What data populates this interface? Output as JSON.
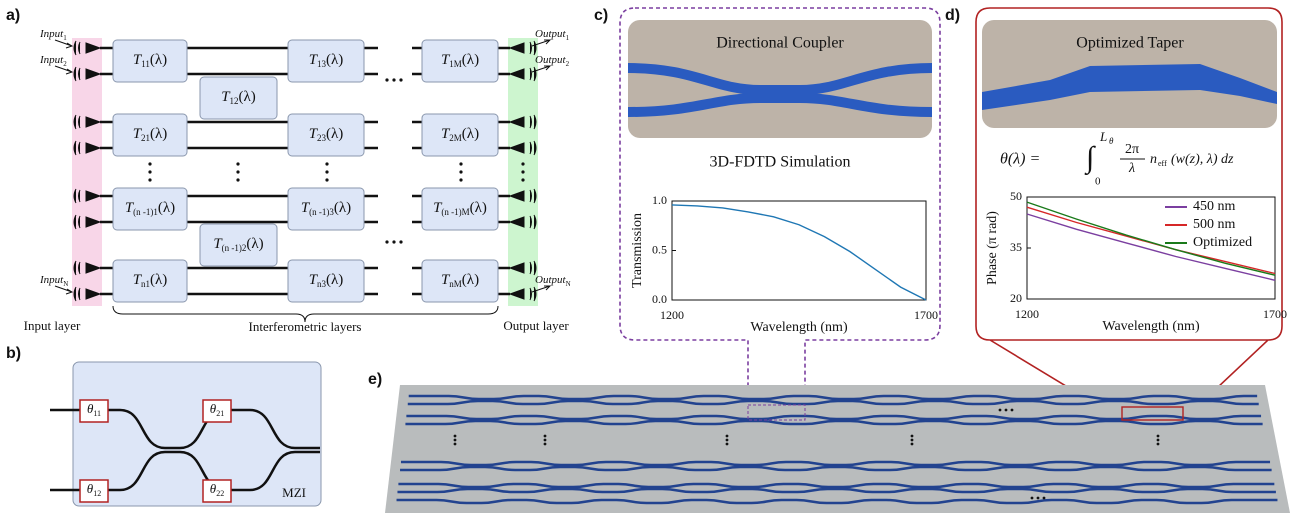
{
  "panel_a": {
    "label": "a)",
    "inputs": [
      {
        "text": "Input",
        "sub": "1"
      },
      {
        "text": "Input",
        "sub": "2"
      },
      {
        "text": "Input",
        "sub": "N"
      }
    ],
    "outputs": [
      {
        "text": "Output",
        "sub": "1"
      },
      {
        "text": "Output",
        "sub": "2"
      },
      {
        "text": "Output",
        "sub": "N"
      }
    ],
    "block_symbol": "T",
    "block_argument": "(λ)",
    "blocks": [
      "11",
      "12",
      "13",
      "1M",
      "21",
      "23",
      "2M",
      "(n -1)1",
      "(n -1)2",
      "(n -1)3",
      "(n -1)M",
      "n1",
      "n3",
      "nM"
    ],
    "layer_labels": [
      "Input layer",
      "Interferometric layers",
      "Output layer"
    ]
  },
  "panel_b": {
    "label": "b)",
    "phase_symbol": "θ",
    "phase_subs": [
      "11",
      "21",
      "12",
      "22"
    ],
    "box_label": "MZI"
  },
  "panel_c": {
    "label": "c)",
    "image_caption": "Directional Coupler",
    "subtitle": "3D-FDTD Simulation",
    "chart": {
      "type": "line",
      "x": [
        1200,
        1250,
        1300,
        1350,
        1400,
        1450,
        1500,
        1550,
        1600,
        1650,
        1700
      ],
      "values": [
        0.96,
        0.95,
        0.93,
        0.89,
        0.84,
        0.76,
        0.64,
        0.49,
        0.31,
        0.13,
        0.0
      ],
      "color": "#1f77b4",
      "xlim": [
        1200,
        1700
      ],
      "ylim": [
        0,
        1
      ],
      "xticks": [
        1200,
        1700
      ],
      "yticks": [
        {
          "value": 0,
          "label": "0.0"
        },
        {
          "value": 0.5,
          "label": "0.5"
        },
        {
          "value": 1,
          "label": "1.0"
        }
      ],
      "xlabel": "Wavelength (nm)",
      "ylabel": "Transmission"
    }
  },
  "panel_d": {
    "label": "d)",
    "image_caption": "Optimized Taper",
    "formula": {
      "lhs": "θ(λ) =",
      "integral": "∫",
      "lower": "0",
      "upper": "L",
      "upper_sub": "θ",
      "numerator": "2π",
      "denominator": "λ",
      "factor": "n",
      "factor_sub": "eff",
      "rest": "(w(z), λ) dz"
    },
    "chart": {
      "type": "line",
      "x": [
        1200,
        1300,
        1400,
        1500,
        1600,
        1700
      ],
      "series": [
        {
          "name": "450 nm",
          "color": "#7b3fa0",
          "values": [
            45,
            40.5,
            36.5,
            32.5,
            29,
            25.5
          ]
        },
        {
          "name": "500 nm",
          "color": "#d62728",
          "values": [
            47,
            42.5,
            38.5,
            34.5,
            31,
            27.5
          ]
        },
        {
          "name": "Optimized",
          "color": "#1a7a1a",
          "values": [
            48.5,
            43.5,
            38.8,
            34.5,
            30.5,
            27
          ]
        }
      ],
      "xlim": [
        1200,
        1700
      ],
      "ylim": [
        20,
        50
      ],
      "xticks": [
        1200,
        1700
      ],
      "yticks": [
        20,
        35,
        50
      ],
      "xlabel": "Wavelength (nm)",
      "ylabel": "Phase (π rad)",
      "legend": "upper right"
    }
  },
  "panel_e": {
    "label": "e)"
  }
}
